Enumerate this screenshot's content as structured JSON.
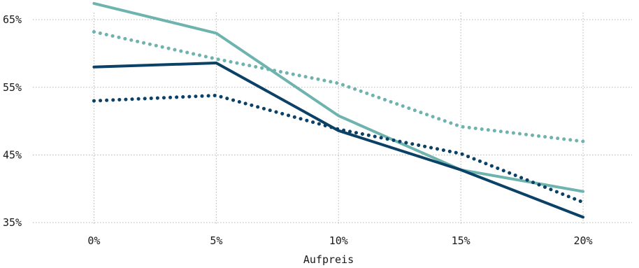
{
  "chart_data": {
    "type": "line",
    "title": "",
    "xlabel": "Aufpreis",
    "ylabel": "",
    "x": [
      0,
      5,
      10,
      15,
      20
    ],
    "x_tick_labels": [
      "0%",
      "5%",
      "10%",
      "15%",
      "20%"
    ],
    "y_ticks": [
      35,
      45,
      55,
      65
    ],
    "y_tick_labels": [
      "35%",
      "45%",
      "55%",
      "65%"
    ],
    "xlim": [
      -2.5,
      22
    ],
    "ylim": [
      34.6,
      67.7
    ],
    "grid": true,
    "legend": "none",
    "series": [
      {
        "color": "#6fb3ae",
        "style": "solid",
        "values": [
          67.4,
          63.0,
          50.8,
          42.8,
          39.6
        ]
      },
      {
        "color": "#6fb3ae",
        "style": "dotted",
        "values": [
          63.2,
          59.2,
          55.6,
          49.2,
          47.0
        ]
      },
      {
        "color": "#0b4166",
        "style": "solid",
        "values": [
          58.0,
          58.6,
          48.6,
          42.8,
          35.8
        ]
      },
      {
        "color": "#0b4166",
        "style": "dotted",
        "values": [
          53.0,
          53.8,
          48.8,
          45.2,
          38.0
        ]
      }
    ]
  }
}
